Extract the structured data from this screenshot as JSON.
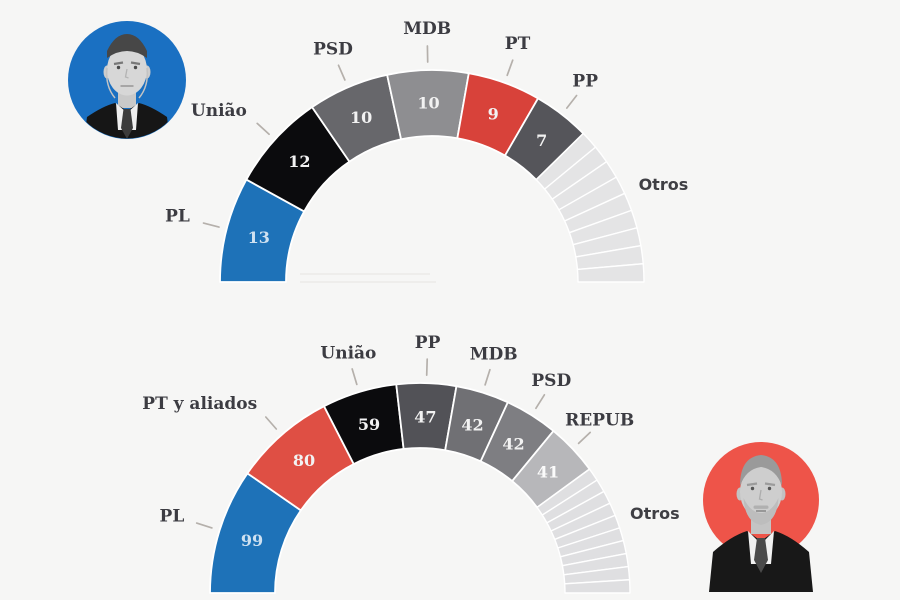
{
  "background": "#f6f6f5",
  "avatars": {
    "top": {
      "name": "bolsonaro-portrait",
      "bg": "#1a70c2"
    },
    "bottom": {
      "name": "lula-portrait",
      "bg": "#ee5449"
    }
  },
  "chart_data": [
    {
      "type": "half_donut",
      "subject": "bolsonaro-coalition-seats",
      "total": 81,
      "legend_position": "radial-outside",
      "segments": [
        {
          "party": "PL",
          "seats": 13,
          "color": "#1e72b8",
          "label_color": "#1c558a",
          "value_color": "#cfe1f1"
        },
        {
          "party": "União",
          "seats": 12,
          "color": "#0b0b0d"
        },
        {
          "party": "PSD",
          "seats": 10,
          "color": "#67676b"
        },
        {
          "party": "MDB",
          "seats": 10,
          "color": "#8e8e91"
        },
        {
          "party": "PT",
          "seats": 9,
          "color": "#d8423a",
          "label_color": "#c4424c"
        },
        {
          "party": "PP",
          "seats": 7,
          "color": "#55555a"
        },
        {
          "party": "Otros",
          "seats": 20,
          "color": "#e4e4e5",
          "striped": true,
          "stripes": 9,
          "show_value": false,
          "show_tick": false,
          "label_font": "sans"
        }
      ]
    },
    {
      "type": "half_donut",
      "subject": "lula-coalition-seats",
      "total": 513,
      "legend_position": "radial-outside",
      "segments": [
        {
          "party": "PL",
          "seats": 99,
          "color": "#1e72b8",
          "label_color": "#1c4f80",
          "value_color": "#cfe1f1"
        },
        {
          "party": "PT y aliados",
          "seats": 80,
          "color": "#df4f44",
          "label_color": "#d94a52"
        },
        {
          "party": "União",
          "seats": 59,
          "color": "#0b0b0d"
        },
        {
          "party": "PP",
          "seats": 47,
          "color": "#525257"
        },
        {
          "party": "MDB",
          "seats": 42,
          "color": "#707074"
        },
        {
          "party": "PSD",
          "seats": 42,
          "color": "#7e7e82"
        },
        {
          "party": "REPUB",
          "seats": 41,
          "color": "#b7b7ba",
          "value_color": "#fbfbfb"
        },
        {
          "party": "Otros",
          "seats": 103,
          "color": "#dfdfe1",
          "striped": true,
          "stripes": 10,
          "show_value": false,
          "show_tick": false,
          "label_font": "sans"
        }
      ]
    }
  ]
}
